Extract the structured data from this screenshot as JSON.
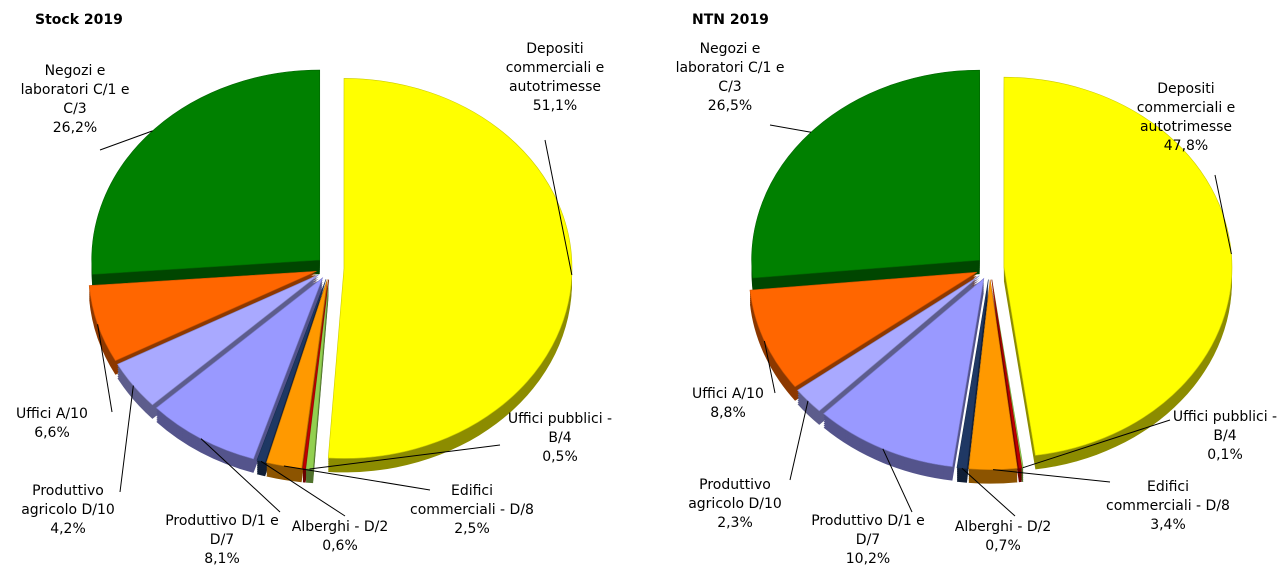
{
  "chart_data": [
    {
      "type": "pie",
      "title": "Stock 2019",
      "categories": [
        "Depositi commerciali e autotrimesse",
        "Uffici pubblici - B/4",
        null,
        "Edifici commerciali - D/8",
        "Alberghi - D/2",
        "Produttivo D/1 e D/7",
        "Produttivo agricolo D/10",
        "Uffici A/10",
        "Negozi e laboratori C/1 e C/3"
      ],
      "values": [
        51.1,
        0.5,
        0.2,
        2.5,
        0.6,
        8.1,
        4.2,
        6.6,
        26.2
      ],
      "value_labels": [
        "51,1%",
        "0,5%",
        null,
        "2,5%",
        "0,6%",
        "8,1%",
        "4,2%",
        "6,6%",
        "26,2%"
      ],
      "colors": [
        "#ffff00",
        "#92d050",
        "#c00000",
        "#ff9900",
        "#1f3864",
        "#9999ff",
        "#a9a9ff",
        "#ff6600",
        "#008000"
      ]
    },
    {
      "type": "pie",
      "title": "NTN 2019",
      "categories": [
        "Depositi commerciali e autotrimesse",
        "Uffici pubblici - B/4",
        null,
        "Edifici commerciali - D/8",
        "Alberghi - D/2",
        "Produttivo D/1 e D/7",
        "Produttivo agricolo D/10",
        "Uffici A/10",
        "Negozi e laboratori C/1 e C/3"
      ],
      "values": [
        47.8,
        0.1,
        0.2,
        3.4,
        0.7,
        10.2,
        2.3,
        8.8,
        26.5
      ],
      "value_labels": [
        "47,8%",
        "0,1%",
        null,
        "3,4%",
        "0,7%",
        "10,2%",
        "2,3%",
        "8,8%",
        "26,5%"
      ],
      "colors": [
        "#ffff00",
        "#92d050",
        "#c00000",
        "#ff9900",
        "#1f3864",
        "#9999ff",
        "#a9a9ff",
        "#ff6600",
        "#008000"
      ]
    }
  ]
}
